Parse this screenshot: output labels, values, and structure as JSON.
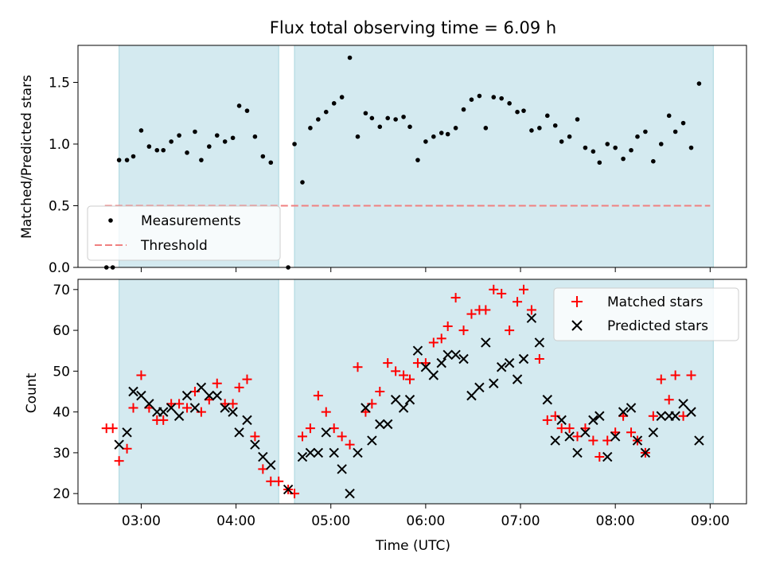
{
  "chart_data": [
    {
      "type": "scatter",
      "panel": "top",
      "title": "Flux total observing time = 6.09 h",
      "ylabel": "Matched/Predicted stars",
      "xlim": [
        "02:20",
        "09:23"
      ],
      "ylim": [
        0,
        1.8
      ],
      "yticks": [
        "0.0",
        "0.5",
        "1.0",
        "1.5"
      ],
      "shaded_intervals": [
        [
          "02:46",
          "04:27"
        ],
        [
          "04:37",
          "09:02"
        ]
      ],
      "shade_color": "#d4eaf0",
      "threshold": {
        "name": "Threshold",
        "value": 0.5,
        "x_range": [
          "02:37",
          "09:00"
        ],
        "color": "#f08080",
        "style": "dashed"
      },
      "legend": {
        "position": "lower-left",
        "entries": [
          "Measurements",
          "Threshold"
        ]
      },
      "series": [
        {
          "name": "Measurements",
          "marker": "dot",
          "color": "#000000",
          "points": [
            [
              "02:38",
              0.0
            ],
            [
              "02:42",
              0.0
            ],
            [
              "02:46",
              0.87
            ],
            [
              "02:51",
              0.87
            ],
            [
              "02:55",
              0.9
            ],
            [
              "03:00",
              1.11
            ],
            [
              "03:05",
              0.98
            ],
            [
              "03:10",
              0.95
            ],
            [
              "03:14",
              0.95
            ],
            [
              "03:19",
              1.02
            ],
            [
              "03:24",
              1.07
            ],
            [
              "03:29",
              0.93
            ],
            [
              "03:34",
              1.1
            ],
            [
              "03:38",
              0.87
            ],
            [
              "03:43",
              0.98
            ],
            [
              "03:48",
              1.07
            ],
            [
              "03:53",
              1.02
            ],
            [
              "03:58",
              1.05
            ],
            [
              "04:02",
              1.31
            ],
            [
              "04:07",
              1.27
            ],
            [
              "04:12",
              1.06
            ],
            [
              "04:17",
              0.9
            ],
            [
              "04:22",
              0.85
            ],
            [
              "04:33",
              0.0
            ],
            [
              "04:37",
              1.0
            ],
            [
              "04:42",
              0.69
            ],
            [
              "04:47",
              1.13
            ],
            [
              "04:52",
              1.2
            ],
            [
              "04:57",
              1.26
            ],
            [
              "05:02",
              1.33
            ],
            [
              "05:07",
              1.38
            ],
            [
              "05:12",
              1.7
            ],
            [
              "05:17",
              1.06
            ],
            [
              "05:22",
              1.25
            ],
            [
              "05:26",
              1.21
            ],
            [
              "05:31",
              1.14
            ],
            [
              "05:36",
              1.21
            ],
            [
              "05:41",
              1.2
            ],
            [
              "05:46",
              1.22
            ],
            [
              "05:50",
              1.14
            ],
            [
              "05:55",
              0.87
            ],
            [
              "06:00",
              1.02
            ],
            [
              "06:05",
              1.06
            ],
            [
              "06:10",
              1.09
            ],
            [
              "06:14",
              1.08
            ],
            [
              "06:19",
              1.13
            ],
            [
              "06:24",
              1.28
            ],
            [
              "06:29",
              1.36
            ],
            [
              "06:34",
              1.39
            ],
            [
              "06:38",
              1.13
            ],
            [
              "06:43",
              1.38
            ],
            [
              "06:48",
              1.37
            ],
            [
              "06:53",
              1.33
            ],
            [
              "06:58",
              1.26
            ],
            [
              "07:02",
              1.27
            ],
            [
              "07:07",
              1.11
            ],
            [
              "07:12",
              1.13
            ],
            [
              "07:17",
              1.23
            ],
            [
              "07:22",
              1.15
            ],
            [
              "07:26",
              1.02
            ],
            [
              "07:31",
              1.06
            ],
            [
              "07:36",
              1.2
            ],
            [
              "07:41",
              0.97
            ],
            [
              "07:46",
              0.94
            ],
            [
              "07:50",
              0.85
            ],
            [
              "07:55",
              1.0
            ],
            [
              "08:00",
              0.97
            ],
            [
              "08:05",
              0.88
            ],
            [
              "08:10",
              0.95
            ],
            [
              "08:14",
              1.06
            ],
            [
              "08:19",
              1.1
            ],
            [
              "08:24",
              0.86
            ],
            [
              "08:29",
              1.0
            ],
            [
              "08:34",
              1.23
            ],
            [
              "08:38",
              1.1
            ],
            [
              "08:43",
              1.17
            ],
            [
              "08:48",
              0.97
            ],
            [
              "08:53",
              1.49
            ]
          ]
        }
      ]
    },
    {
      "type": "scatter",
      "panel": "bottom",
      "xlabel": "Time (UTC)",
      "ylabel": "Count",
      "xlim": [
        "02:20",
        "09:23"
      ],
      "ylim": [
        17.5,
        72.5
      ],
      "xticks": [
        "03:00",
        "04:00",
        "05:00",
        "06:00",
        "07:00",
        "08:00",
        "09:00"
      ],
      "yticks": [
        "20",
        "30",
        "40",
        "50",
        "60",
        "70"
      ],
      "shaded_intervals": [
        [
          "02:46",
          "04:27"
        ],
        [
          "04:37",
          "09:02"
        ]
      ],
      "shade_color": "#d4eaf0",
      "legend": {
        "position": "top-right",
        "entries": [
          "Matched stars",
          "Predicted stars"
        ]
      },
      "series": [
        {
          "name": "Matched stars",
          "marker": "plus",
          "color": "#ff0000",
          "points": [
            [
              "02:38",
              36
            ],
            [
              "02:42",
              36
            ],
            [
              "02:46",
              28
            ],
            [
              "02:51",
              31
            ],
            [
              "02:55",
              41
            ],
            [
              "03:00",
              49
            ],
            [
              "03:05",
              41
            ],
            [
              "03:10",
              38
            ],
            [
              "03:14",
              38
            ],
            [
              "03:19",
              42
            ],
            [
              "03:24",
              42
            ],
            [
              "03:29",
              41
            ],
            [
              "03:34",
              45
            ],
            [
              "03:38",
              40
            ],
            [
              "03:43",
              43
            ],
            [
              "03:48",
              47
            ],
            [
              "03:53",
              42
            ],
            [
              "03:58",
              42
            ],
            [
              "04:02",
              46
            ],
            [
              "04:07",
              48
            ],
            [
              "04:12",
              34
            ],
            [
              "04:17",
              26
            ],
            [
              "04:22",
              23
            ],
            [
              "04:27",
              23
            ],
            [
              "04:33",
              21
            ],
            [
              "04:37",
              20
            ],
            [
              "04:42",
              34
            ],
            [
              "04:47",
              36
            ],
            [
              "04:52",
              44
            ],
            [
              "04:57",
              40
            ],
            [
              "05:02",
              36
            ],
            [
              "05:07",
              34
            ],
            [
              "05:12",
              32
            ],
            [
              "05:17",
              51
            ],
            [
              "05:22",
              40
            ],
            [
              "05:26",
              42
            ],
            [
              "05:31",
              45
            ],
            [
              "05:36",
              52
            ],
            [
              "05:41",
              50
            ],
            [
              "05:46",
              49
            ],
            [
              "05:50",
              48
            ],
            [
              "05:55",
              52
            ],
            [
              "06:00",
              52
            ],
            [
              "06:05",
              57
            ],
            [
              "06:10",
              58
            ],
            [
              "06:14",
              61
            ],
            [
              "06:19",
              68
            ],
            [
              "06:24",
              60
            ],
            [
              "06:29",
              64
            ],
            [
              "06:34",
              65
            ],
            [
              "06:38",
              65
            ],
            [
              "06:43",
              70
            ],
            [
              "06:48",
              69
            ],
            [
              "06:53",
              60
            ],
            [
              "06:58",
              67
            ],
            [
              "07:02",
              70
            ],
            [
              "07:07",
              65
            ],
            [
              "07:12",
              53
            ],
            [
              "07:17",
              38
            ],
            [
              "07:22",
              39
            ],
            [
              "07:26",
              36
            ],
            [
              "07:31",
              36
            ],
            [
              "07:36",
              34
            ],
            [
              "07:41",
              36
            ],
            [
              "07:46",
              33
            ],
            [
              "07:50",
              29
            ],
            [
              "07:55",
              33
            ],
            [
              "08:00",
              35
            ],
            [
              "08:05",
              39
            ],
            [
              "08:10",
              35
            ],
            [
              "08:14",
              33
            ],
            [
              "08:19",
              30
            ],
            [
              "08:24",
              39
            ],
            [
              "08:29",
              48
            ],
            [
              "08:34",
              43
            ],
            [
              "08:38",
              49
            ],
            [
              "08:43",
              39
            ],
            [
              "08:48",
              49
            ]
          ]
        },
        {
          "name": "Predicted stars",
          "marker": "x",
          "color": "#000000",
          "points": [
            [
              "02:46",
              32
            ],
            [
              "02:51",
              35
            ],
            [
              "02:55",
              45
            ],
            [
              "03:00",
              44
            ],
            [
              "03:05",
              42
            ],
            [
              "03:10",
              40
            ],
            [
              "03:14",
              40
            ],
            [
              "03:19",
              41
            ],
            [
              "03:24",
              39
            ],
            [
              "03:29",
              44
            ],
            [
              "03:34",
              41
            ],
            [
              "03:38",
              46
            ],
            [
              "03:43",
              44
            ],
            [
              "03:48",
              44
            ],
            [
              "03:53",
              41
            ],
            [
              "03:58",
              40
            ],
            [
              "04:02",
              35
            ],
            [
              "04:07",
              38
            ],
            [
              "04:12",
              32
            ],
            [
              "04:17",
              29
            ],
            [
              "04:22",
              27
            ],
            [
              "04:33",
              21
            ],
            [
              "04:42",
              29
            ],
            [
              "04:47",
              30
            ],
            [
              "04:52",
              30
            ],
            [
              "04:57",
              35
            ],
            [
              "05:02",
              30
            ],
            [
              "05:07",
              26
            ],
            [
              "05:12",
              20
            ],
            [
              "05:17",
              30
            ],
            [
              "05:22",
              41
            ],
            [
              "05:26",
              33
            ],
            [
              "05:31",
              37
            ],
            [
              "05:36",
              37
            ],
            [
              "05:41",
              43
            ],
            [
              "05:46",
              41
            ],
            [
              "05:50",
              43
            ],
            [
              "05:55",
              55
            ],
            [
              "06:00",
              51
            ],
            [
              "06:05",
              49
            ],
            [
              "06:10",
              52
            ],
            [
              "06:14",
              54
            ],
            [
              "06:19",
              54
            ],
            [
              "06:24",
              53
            ],
            [
              "06:29",
              44
            ],
            [
              "06:34",
              46
            ],
            [
              "06:38",
              57
            ],
            [
              "06:43",
              47
            ],
            [
              "06:48",
              51
            ],
            [
              "06:53",
              52
            ],
            [
              "06:58",
              48
            ],
            [
              "07:02",
              53
            ],
            [
              "07:07",
              63
            ],
            [
              "07:12",
              57
            ],
            [
              "07:17",
              43
            ],
            [
              "07:22",
              33
            ],
            [
              "07:26",
              38
            ],
            [
              "07:31",
              34
            ],
            [
              "07:36",
              30
            ],
            [
              "07:41",
              35
            ],
            [
              "07:46",
              38
            ],
            [
              "07:50",
              39
            ],
            [
              "07:55",
              29
            ],
            [
              "08:00",
              34
            ],
            [
              "08:05",
              40
            ],
            [
              "08:10",
              41
            ],
            [
              "08:14",
              33
            ],
            [
              "08:19",
              30
            ],
            [
              "08:24",
              35
            ],
            [
              "08:29",
              39
            ],
            [
              "08:34",
              39
            ],
            [
              "08:38",
              39
            ],
            [
              "08:43",
              42
            ],
            [
              "08:48",
              40
            ],
            [
              "08:53",
              33
            ]
          ]
        }
      ]
    }
  ]
}
